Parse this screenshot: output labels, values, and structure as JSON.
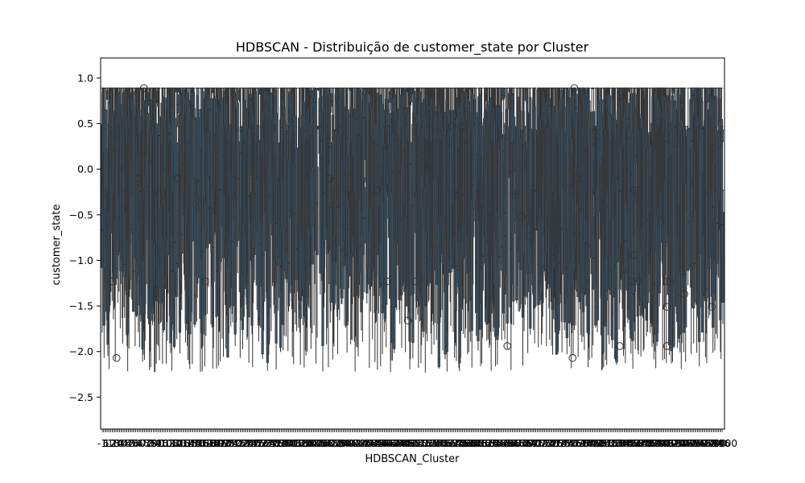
{
  "chart_data": {
    "type": "box",
    "title": "HDBSCAN - Distribuição de customer_state por Cluster",
    "xlabel": "HDBSCAN_Cluster",
    "ylabel": "customer_state",
    "ylim": [
      -2.85,
      1.22
    ],
    "yticks": [
      1.0,
      0.5,
      0.0,
      -0.5,
      -1.0,
      -1.5,
      -2.0,
      -2.5
    ],
    "ytick_labels": [
      "1.0",
      "0.5",
      "0.0",
      "−0.5",
      "−1.0",
      "−1.5",
      "−2.0",
      "−2.5"
    ],
    "grid": false,
    "legend": "none",
    "box_color": "#3b4f5e",
    "line_color": "#333333",
    "outlier_color": "#333333",
    "x_tick_labels_overlapping": true,
    "xtick_first_label": "-1",
    "xtick_last_label": "1000",
    "cluster_count_approx": 1000,
    "whisker_max": 0.89,
    "outliers": [
      {
        "x": 16,
        "y": -1.23
      },
      {
        "x": 23,
        "y": -2.07
      },
      {
        "x": 67,
        "y": 0.89
      },
      {
        "x": 59,
        "y": -0.1
      },
      {
        "x": 121,
        "y": -0.1
      },
      {
        "x": 166,
        "y": -1.23
      },
      {
        "x": 366,
        "y": -0.1
      },
      {
        "x": 396,
        "y": -0.23
      },
      {
        "x": 442,
        "y": -0.23
      },
      {
        "x": 458,
        "y": -1.23
      },
      {
        "x": 492,
        "y": -1.66
      },
      {
        "x": 504,
        "y": -1.23
      },
      {
        "x": 562,
        "y": 0.47
      },
      {
        "x": 577,
        "y": 0.47
      },
      {
        "x": 652,
        "y": -1.94
      },
      {
        "x": 675,
        "y": -0.52
      },
      {
        "x": 760,
        "y": 0.89
      },
      {
        "x": 765,
        "y": -0.1
      },
      {
        "x": 757,
        "y": -2.07
      },
      {
        "x": 833,
        "y": -1.94
      },
      {
        "x": 851,
        "y": -1.23
      },
      {
        "x": 856,
        "y": -0.23
      },
      {
        "x": 856,
        "y": -0.94
      },
      {
        "x": 862,
        "y": -1.23
      },
      {
        "x": 910,
        "y": -1.23
      },
      {
        "x": 914,
        "y": -1.23
      },
      {
        "x": 909,
        "y": -1.51
      },
      {
        "x": 909,
        "y": -1.94
      },
      {
        "x": 937,
        "y": -1.37
      },
      {
        "x": 981,
        "y": -1.51
      }
    ]
  }
}
